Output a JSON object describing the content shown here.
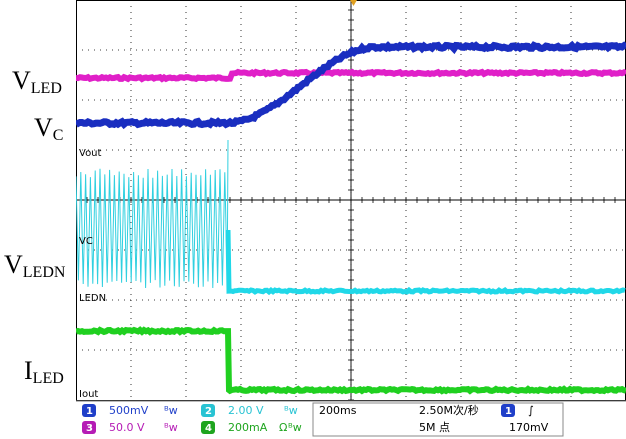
{
  "labels": {
    "vled": {
      "main": "V",
      "sub": "LED"
    },
    "vc": {
      "main": "V",
      "sub": "C"
    },
    "vledn": {
      "main": "V",
      "sub": "LEDN"
    },
    "iled": {
      "main": "I",
      "sub": "LED"
    }
  },
  "trace_tags": {
    "vout": "Vout",
    "vc": "VC",
    "ledn": "LEDN",
    "iout": "Iout"
  },
  "status_bar": {
    "ch1": {
      "num": "1",
      "scale": "500mV",
      "color": "#1f3fc9"
    },
    "ch2": {
      "num": "2",
      "scale": "2.00 V",
      "color": "#28c3d3"
    },
    "ch3": {
      "num": "3",
      "scale": "50.0 V",
      "color": "#b51cb5"
    },
    "ch4": {
      "num": "4",
      "scale": "200mA",
      "color": "#1fa51f"
    },
    "bw_symbol": "ᴮw",
    "ohm_symbol": "Ω",
    "timebase": "200ms",
    "sample_rate": "2.50M次/秒",
    "record_length": "5M 点",
    "trigger_channel": "1",
    "trigger_slope": "∫",
    "trigger_level": "170mV"
  },
  "colors": {
    "vled": "#e020c8",
    "vc": "#1a2ec0",
    "vout": "#30d0e0",
    "vledn": "#20d8e8",
    "iled": "#20d020",
    "grid": "#000000",
    "trigger_marker": "#e0a020"
  }
}
